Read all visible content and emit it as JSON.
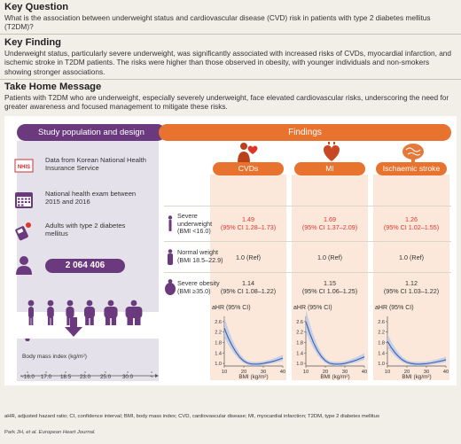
{
  "key_question": {
    "title": "Key Question",
    "text": "What is the association between underweight status and cardiovascular disease (CVD) risk in patients with type 2 diabetes mellitus (T2DM)?"
  },
  "key_finding": {
    "title": "Key Finding",
    "text": "Underweight status, particularly severe underweight, was significantly associated with increased risks of CVDs, myocardial infarction, and ischemic stroke in T2DM patients. The risks were higher than those observed in obesity, with younger individuals and non-smokers showing stronger associations."
  },
  "take_home": {
    "title": "Take Home Message",
    "text": "Patients with T2DM who are underweight, especially severely underweight, face elevated cardiovascular risks, underscoring the need for greater awareness and focused management to mitigate these risks."
  },
  "figure": {
    "left_title": "Study population and design",
    "right_title": "Findings",
    "study_items": [
      {
        "text": "Data from Korean National Health Insurance Service",
        "icon": "nhis-logo-icon",
        "logo_text": "NHIS"
      },
      {
        "text": "National health exam between 2015 and 2016",
        "icon": "calendar-icon"
      },
      {
        "text": "Adults with type 2 diabetes mellitus",
        "icon": "glucose-meter-icon"
      }
    ],
    "count": "2 064 406",
    "bmi": {
      "title": "Body mass index (kg/m²)",
      "ticks": [
        "~16.0",
        "17.0",
        "18.5",
        "23.0",
        "25.0",
        "30.0",
        "~"
      ]
    },
    "columns": [
      {
        "label": "CVDs",
        "icon": "heart-person-icon"
      },
      {
        "label": "MI",
        "icon": "heart-icon"
      },
      {
        "label": "Ischaemic stroke",
        "icon": "brain-icon"
      }
    ],
    "rows": [
      {
        "label_line1": "Severe",
        "label_line2": "underweight",
        "label_line3": "(BMI <16.0)",
        "values": [
          {
            "hr": "1.49",
            "ci": "(95% CI 1.28–1.73)"
          },
          {
            "hr": "1.69",
            "ci": "(95% CI 1.37–2.09)"
          },
          {
            "hr": "1.26",
            "ci": "(95% CI 1.02–1.55)"
          }
        ]
      },
      {
        "label_line1": "Normal weight",
        "label_line2": "(BMI 18.5–22.9)",
        "values": [
          {
            "hr": "1.0 (Ref)"
          },
          {
            "hr": "1.0 (Ref)"
          },
          {
            "hr": "1.0 (Ref)"
          }
        ]
      },
      {
        "label_line1": "Severe obesity",
        "label_line2": "(BMI ≥35.0)",
        "values": [
          {
            "hr": "1.14",
            "ci": "(95% CI 1.08–1.22)"
          },
          {
            "hr": "1.15",
            "ci": "(95% CI 1.06–1.25)"
          },
          {
            "hr": "1.12",
            "ci": "(95% CI 1.03–1.22)"
          }
        ]
      }
    ],
    "plot": {
      "ylabel": "aHR (95% CI)",
      "xlabel": "BMI (kg/m²)",
      "yticks": [
        "2.6",
        "2.2",
        "1.8",
        "1.4",
        "1.0"
      ],
      "xticks": [
        "10",
        "20",
        "30",
        "40"
      ]
    }
  },
  "chart_data": [
    {
      "type": "line",
      "xlabel": "BMI (kg/m²)",
      "ylabel": "aHR (95% CI)",
      "xlim": [
        10,
        40
      ],
      "ylim": [
        0.9,
        2.8
      ],
      "series": [
        {
          "x": [
            10,
            12,
            14,
            16,
            18,
            20,
            22,
            24,
            26,
            28,
            30,
            32,
            34,
            36,
            38,
            40
          ],
          "values": [
            2.35,
            1.98,
            1.68,
            1.43,
            1.23,
            1.09,
            1.01,
            0.98,
            0.97,
            0.98,
            1.0,
            1.03,
            1.06,
            1.1,
            1.15,
            1.2
          ]
        }
      ]
    },
    {
      "type": "line",
      "xlabel": "BMI (kg/m²)",
      "ylabel": "aHR (95% CI)",
      "xlim": [
        10,
        40
      ],
      "ylim": [
        0.9,
        2.8
      ],
      "series": [
        {
          "x": [
            10,
            12,
            14,
            16,
            18,
            20,
            22,
            24,
            26,
            28,
            30,
            32,
            34,
            36,
            38,
            40
          ],
          "values": [
            2.6,
            2.15,
            1.78,
            1.48,
            1.26,
            1.1,
            1.01,
            0.98,
            0.97,
            0.98,
            1.0,
            1.04,
            1.08,
            1.13,
            1.19,
            1.25
          ]
        }
      ]
    },
    {
      "type": "line",
      "xlabel": "BMI (kg/m²)",
      "ylabel": "aHR (95% CI)",
      "xlim": [
        10,
        40
      ],
      "ylim": [
        0.9,
        2.8
      ],
      "series": [
        {
          "x": [
            10,
            12,
            14,
            16,
            18,
            20,
            22,
            24,
            26,
            28,
            30,
            32,
            34,
            36,
            38,
            40
          ],
          "values": [
            1.85,
            1.6,
            1.4,
            1.24,
            1.12,
            1.04,
            1.0,
            0.98,
            0.97,
            0.98,
            0.99,
            1.01,
            1.04,
            1.07,
            1.1,
            1.14
          ]
        }
      ]
    }
  ],
  "footnote": {
    "abbrev": "aHR, adjusted hazard ratio; CI, confidence interval; BMI, body mass index; CVD, cardiovascular disease; MI, myocardial infarction; T2DM, type 2 diabetes mellitus",
    "author": "Park JH, ",
    "journal": "et al. European Heart Journal."
  },
  "colors": {
    "purple": "#6b3a7e",
    "orange": "#e8732e",
    "red": "#e0342c",
    "curve": "#3a5fb0"
  }
}
